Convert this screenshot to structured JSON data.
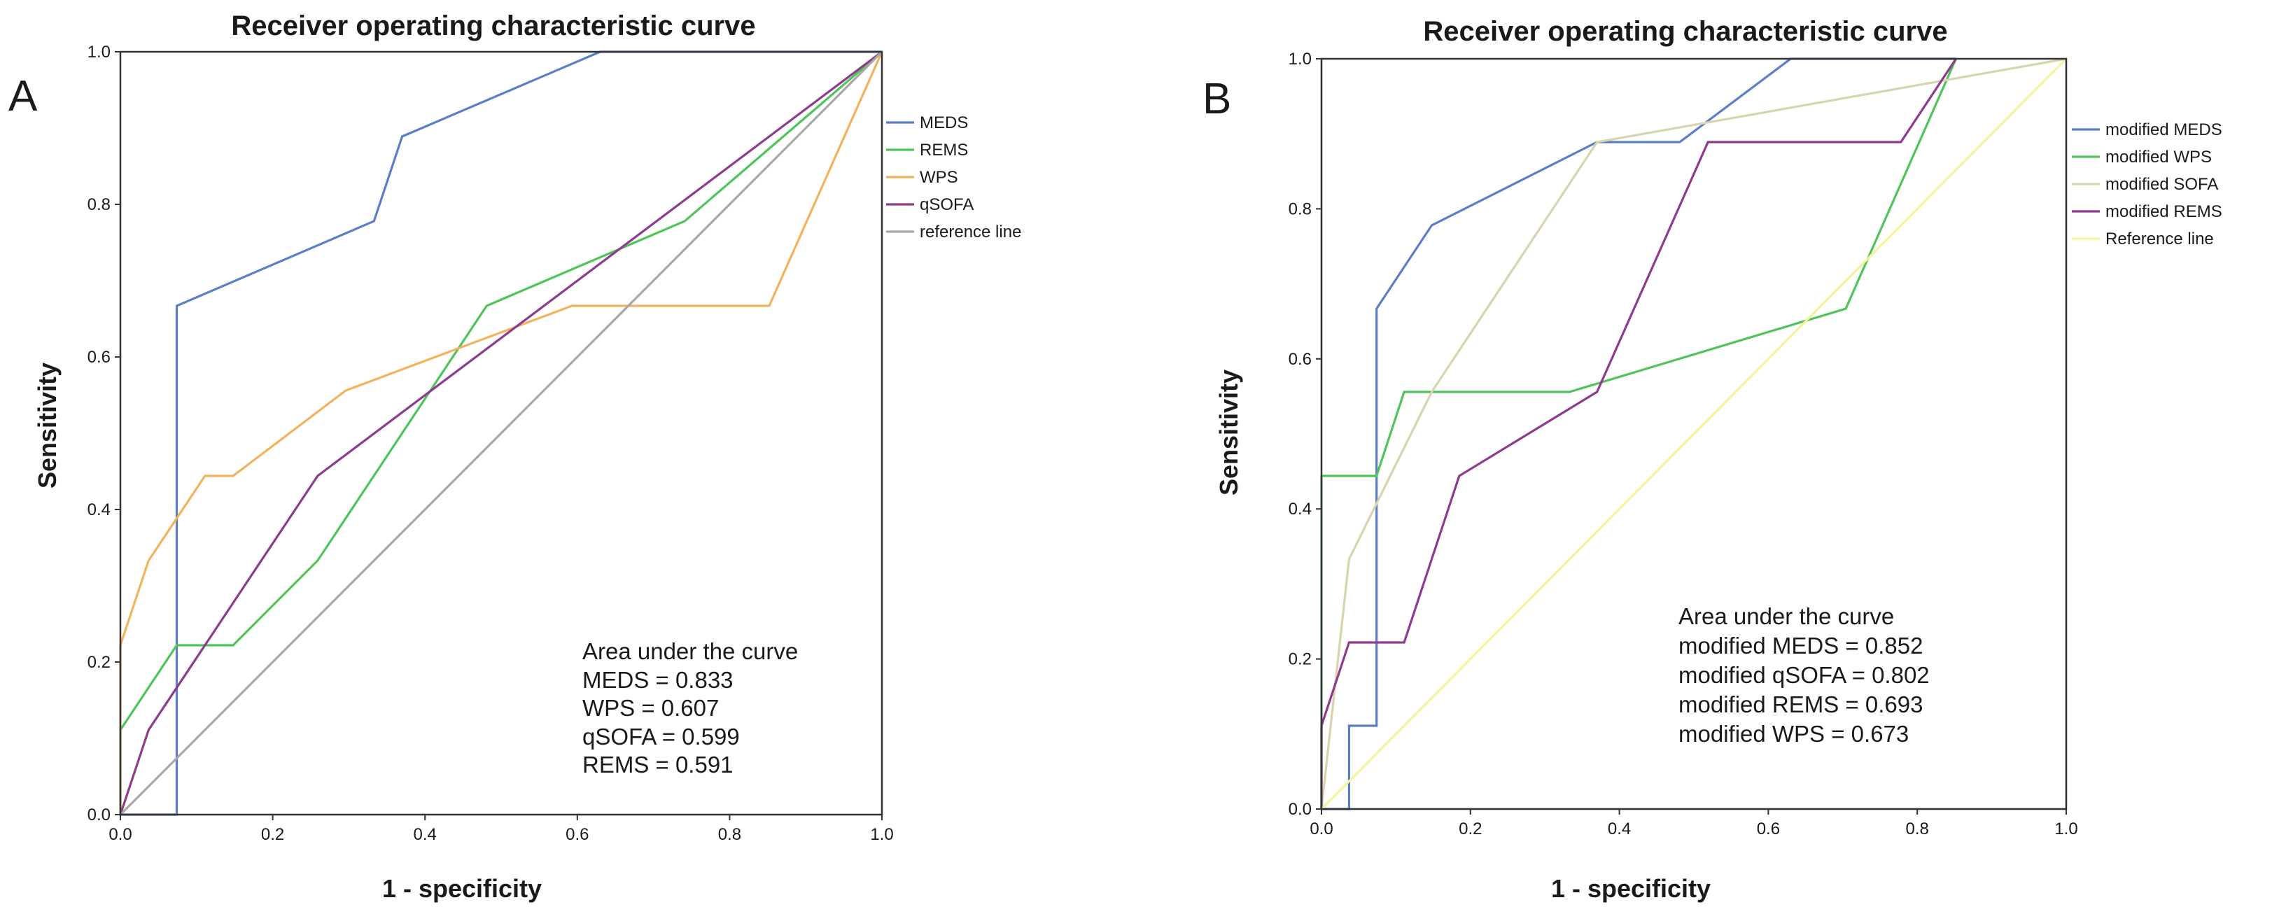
{
  "chart_data": [
    {
      "panel": "A",
      "type": "line",
      "title": "Receiver operating characteristic curve",
      "xlabel": "1 - specificity",
      "ylabel": "Sensitivity",
      "xlim": [
        0,
        1
      ],
      "ylim": [
        0,
        1
      ],
      "xticks": [
        "0.0",
        "0.2",
        "0.4",
        "0.6",
        "0.8",
        "1.0"
      ],
      "yticks": [
        "0.0",
        "0.2",
        "0.4",
        "0.6",
        "0.8",
        "1.0"
      ],
      "legend_position": "right",
      "series": [
        {
          "name": "MEDS",
          "color": "#5b7fc7",
          "x": [
            0,
            0.074,
            0.074,
            0.333,
            0.37,
            0.63,
            1
          ],
          "y": [
            0,
            0,
            0.667,
            0.778,
            0.889,
            1,
            1
          ]
        },
        {
          "name": "REMS",
          "color": "#4fc45a",
          "x": [
            0,
            0,
            0.074,
            0.148,
            0.259,
            0.481,
            0.741,
            1
          ],
          "y": [
            0,
            0.111,
            0.222,
            0.222,
            0.333,
            0.667,
            0.778,
            1
          ]
        },
        {
          "name": "WPS",
          "color": "#f2b25e",
          "x": [
            0,
            0,
            0.037,
            0.111,
            0.148,
            0.296,
            0.593,
            0.852,
            1
          ],
          "y": [
            0,
            0.222,
            0.333,
            0.444,
            0.444,
            0.556,
            0.667,
            0.667,
            1
          ]
        },
        {
          "name": "qSOFA",
          "color": "#8e3a8e",
          "x": [
            0,
            0.037,
            0.259,
            0.852,
            1
          ],
          "y": [
            0,
            0.111,
            0.444,
            0.889,
            1
          ]
        },
        {
          "name": "reference line",
          "color": "#a8a8a8",
          "x": [
            0,
            1
          ],
          "y": [
            0,
            1
          ]
        }
      ],
      "annotation": {
        "heading": "Area under the curve",
        "lines": [
          "MEDS = 0.833",
          "WPS = 0.607",
          "qSOFA = 0.599",
          "REMS = 0.591"
        ]
      }
    },
    {
      "panel": "B",
      "type": "line",
      "title": "Receiver operating characteristic curve",
      "xlabel": "1 - specificity",
      "ylabel": "Sensitivity",
      "xlim": [
        0,
        1
      ],
      "ylim": [
        0,
        1
      ],
      "xticks": [
        "0.0",
        "0.2",
        "0.4",
        "0.6",
        "0.8",
        "1.0"
      ],
      "yticks": [
        "0.0",
        "0.2",
        "0.4",
        "0.6",
        "0.8",
        "1.0"
      ],
      "legend_position": "right",
      "series": [
        {
          "name": "modified MEDS",
          "color": "#5b7fc7",
          "x": [
            0,
            0.037,
            0.037,
            0.074,
            0.074,
            0.148,
            0.37,
            0.481,
            0.63,
            0.852
          ],
          "y": [
            0,
            0,
            0.111,
            0.111,
            0.667,
            0.778,
            0.889,
            0.889,
            1,
            1
          ]
        },
        {
          "name": "modified WPS",
          "color": "#4fc45a",
          "x": [
            0,
            0,
            0.074,
            0.111,
            0.333,
            0.704,
            0.852
          ],
          "y": [
            0,
            0.444,
            0.444,
            0.556,
            0.556,
            0.667,
            1
          ]
        },
        {
          "name": "modified SOFA",
          "color": "#d8d4ae",
          "x": [
            0,
            0.037,
            0.148,
            0.37,
            1
          ],
          "y": [
            0,
            0.333,
            0.556,
            0.889,
            1
          ]
        },
        {
          "name": "modified REMS",
          "color": "#8e3a8e",
          "x": [
            0,
            0,
            0.037,
            0.111,
            0.185,
            0.37,
            0.519,
            0.778,
            0.852
          ],
          "y": [
            0,
            0.111,
            0.222,
            0.222,
            0.444,
            0.556,
            0.889,
            0.889,
            1
          ]
        },
        {
          "name": "Reference line",
          "color": "#f6f39a",
          "x": [
            0,
            1
          ],
          "y": [
            0,
            1
          ]
        }
      ],
      "annotation": {
        "heading": "Area under the curve",
        "lines": [
          "modified MEDS = 0.852",
          "modified qSOFA = 0.802",
          "modified REMS = 0.693",
          "modified WPS = 0.673"
        ]
      }
    }
  ]
}
